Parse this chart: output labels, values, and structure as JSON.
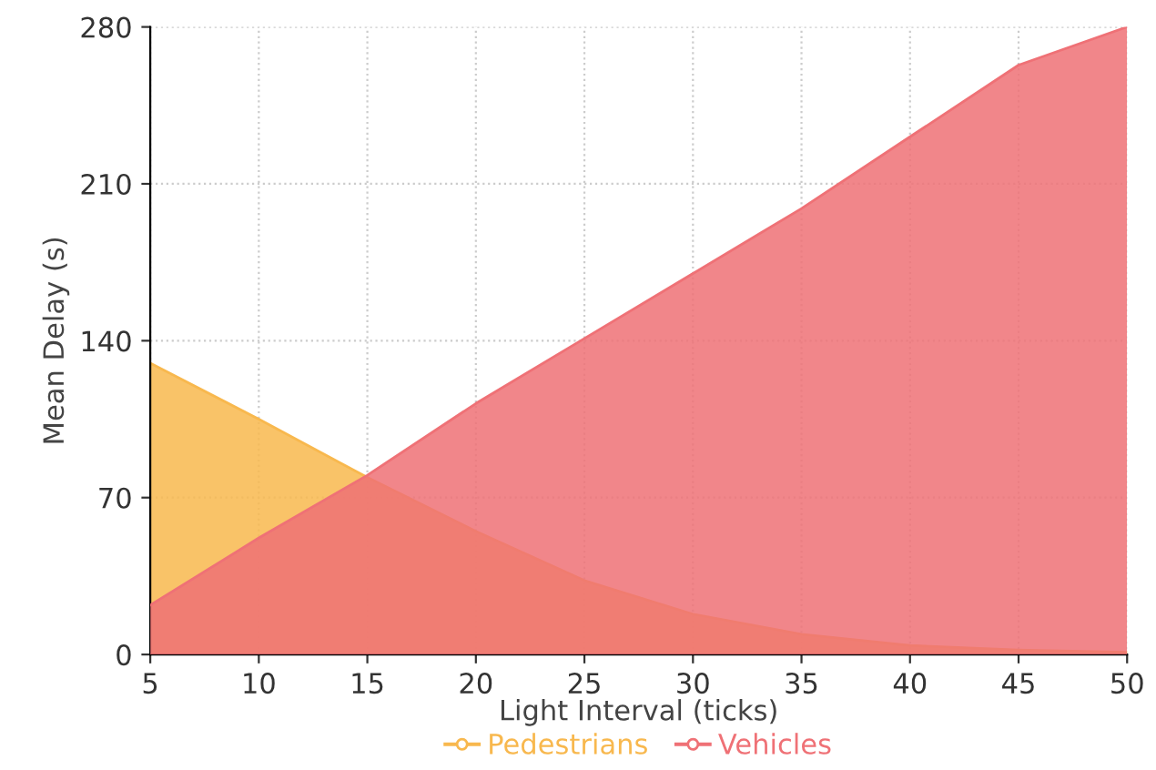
{
  "chart_data": {
    "type": "area",
    "xlabel": "Light Interval (ticks)",
    "ylabel": "Mean Delay (s)",
    "x": [
      5,
      10,
      15,
      20,
      25,
      30,
      35,
      40,
      45,
      50
    ],
    "series": [
      {
        "name": "Pedestrians",
        "color": "#f8b84e",
        "values": [
          130,
          105,
          79,
          55,
          33,
          18,
          9,
          4,
          2,
          1
        ]
      },
      {
        "name": "Vehicles",
        "color": "#ef7176",
        "values": [
          22,
          52,
          80,
          112,
          141,
          170,
          199,
          231,
          263,
          280
        ]
      }
    ],
    "xlim": [
      5,
      50
    ],
    "xticks": [
      5,
      10,
      15,
      20,
      25,
      30,
      35,
      40,
      45,
      50
    ],
    "ylim": [
      0,
      280
    ],
    "yticks": [
      0,
      70,
      140,
      210,
      280
    ],
    "grid": true,
    "legend": "bottom"
  }
}
